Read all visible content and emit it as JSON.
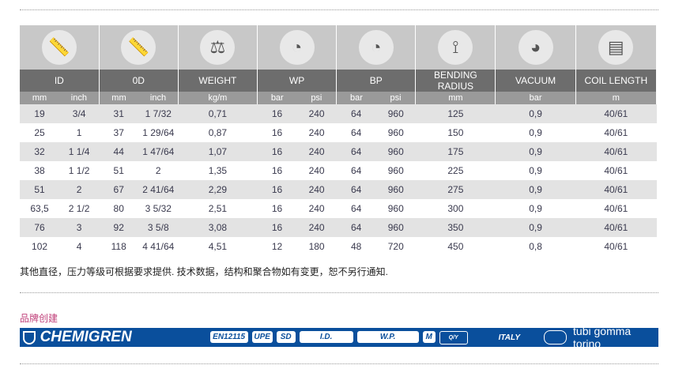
{
  "columns": [
    {
      "title": "ID",
      "icon": "caliper-inner-icon",
      "units": [
        "mm",
        "inch"
      ]
    },
    {
      "title": "0D",
      "icon": "caliper-outer-icon",
      "units": [
        "mm",
        "inch"
      ]
    },
    {
      "title": "WEIGHT",
      "icon": "scale-icon",
      "units": [
        "kg/m"
      ]
    },
    {
      "title": "WP",
      "icon": "pressure-gauge-icon",
      "units": [
        "bar",
        "psi"
      ]
    },
    {
      "title": "BP",
      "icon": "pressure-gauge-icon",
      "units": [
        "bar",
        "psi"
      ]
    },
    {
      "title": "BENDING RADIUS",
      "icon": "bending-radius-icon",
      "units": [
        "mm"
      ]
    },
    {
      "title": "VACUUM",
      "icon": "vacuum-gauge-icon",
      "units": [
        "bar"
      ]
    },
    {
      "title": "COIL LENGTH",
      "icon": "tape-measure-icon",
      "units": [
        "m"
      ]
    }
  ],
  "rows": [
    [
      "19",
      "3/4",
      "31",
      "1 7/32",
      "0,71",
      "16",
      "240",
      "64",
      "960",
      "125",
      "0,9",
      "40/61"
    ],
    [
      "25",
      "1",
      "37",
      "1 29/64",
      "0,87",
      "16",
      "240",
      "64",
      "960",
      "150",
      "0,9",
      "40/61"
    ],
    [
      "32",
      "1 1/4",
      "44",
      "1 47/64",
      "1,07",
      "16",
      "240",
      "64",
      "960",
      "175",
      "0,9",
      "40/61"
    ],
    [
      "38",
      "1 1/2",
      "51",
      "2",
      "1,35",
      "16",
      "240",
      "64",
      "960",
      "225",
      "0,9",
      "40/61"
    ],
    [
      "51",
      "2",
      "67",
      "2 41/64",
      "2,29",
      "16",
      "240",
      "64",
      "960",
      "275",
      "0,9",
      "40/61"
    ],
    [
      "63,5",
      "2 1/2",
      "80",
      "3 5/32",
      "2,51",
      "16",
      "240",
      "64",
      "960",
      "300",
      "0,9",
      "40/61"
    ],
    [
      "76",
      "3",
      "92",
      "3 5/8",
      "3,08",
      "16",
      "240",
      "64",
      "960",
      "350",
      "0,9",
      "40/61"
    ],
    [
      "102",
      "4",
      "118",
      "4 41/64",
      "4,51",
      "12",
      "180",
      "48",
      "720",
      "450",
      "0,8",
      "40/61"
    ]
  ],
  "note": "其他直径，压力等级可根据要求提供. 技术数据，结构和聚合物如有变更，恕不另行通知.",
  "brand_label": "品牌创建",
  "banner": {
    "name": "CHEMIGREN",
    "pills": [
      "EN12115",
      "UPE",
      "SD",
      "I.D.",
      "W.P.",
      "M",
      "Q/Y"
    ],
    "origin": "ITALY",
    "maker": "tubi gomma torino",
    "color": "#0a4f9c"
  }
}
